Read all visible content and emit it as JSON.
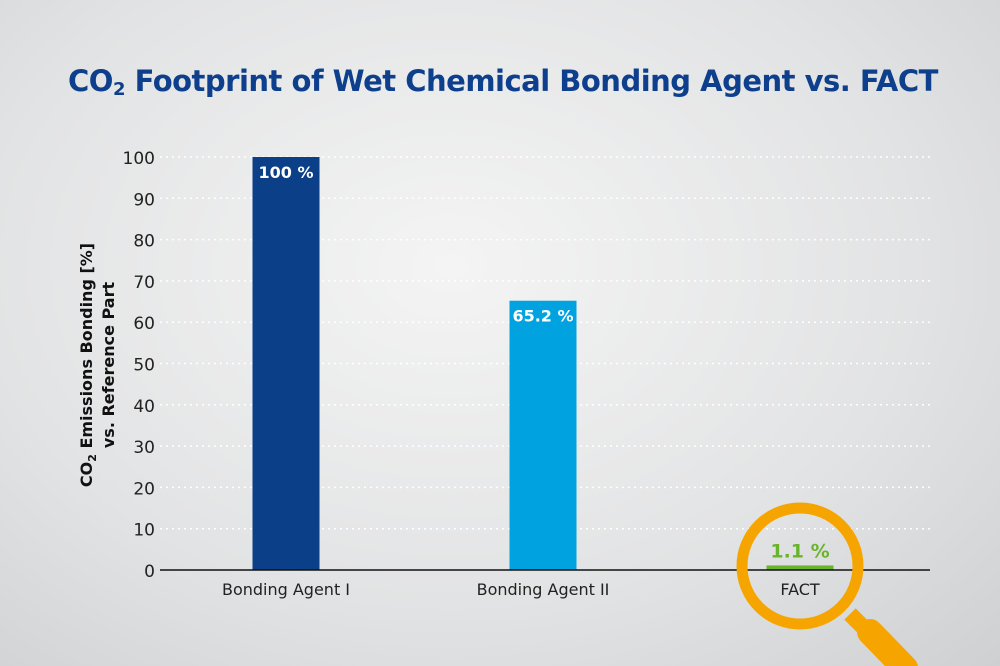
{
  "chart_data": {
    "type": "bar",
    "title_main": "CO",
    "title_sub": "2",
    "title_rest": " Footprint of Wet Chemical Bonding Agent vs. FACT",
    "ylabel_line1_main": "CO",
    "ylabel_line1_sub": "2",
    "ylabel_line1_rest": " Emissions Bonding [%]",
    "ylabel_line2": "vs. Reference Part",
    "ylim": [
      0,
      100
    ],
    "yticks": [
      0,
      10,
      20,
      30,
      40,
      50,
      60,
      70,
      80,
      90,
      100
    ],
    "grid": true,
    "categories": [
      "Bonding Agent I",
      "Bonding Agent II",
      "FACT"
    ],
    "values": [
      100,
      65.2,
      1.1
    ],
    "data_labels": [
      "100 %",
      "65.2 %",
      "1.1 %"
    ],
    "colors": [
      "#0b3f87",
      "#00a3e0",
      "#6ab42d"
    ],
    "label_colors": [
      "#ffffff",
      "#ffffff",
      "#6ab42d"
    ],
    "highlight": {
      "icon": "magnifier-icon",
      "category": "FACT",
      "color": "#f6a500"
    }
  }
}
